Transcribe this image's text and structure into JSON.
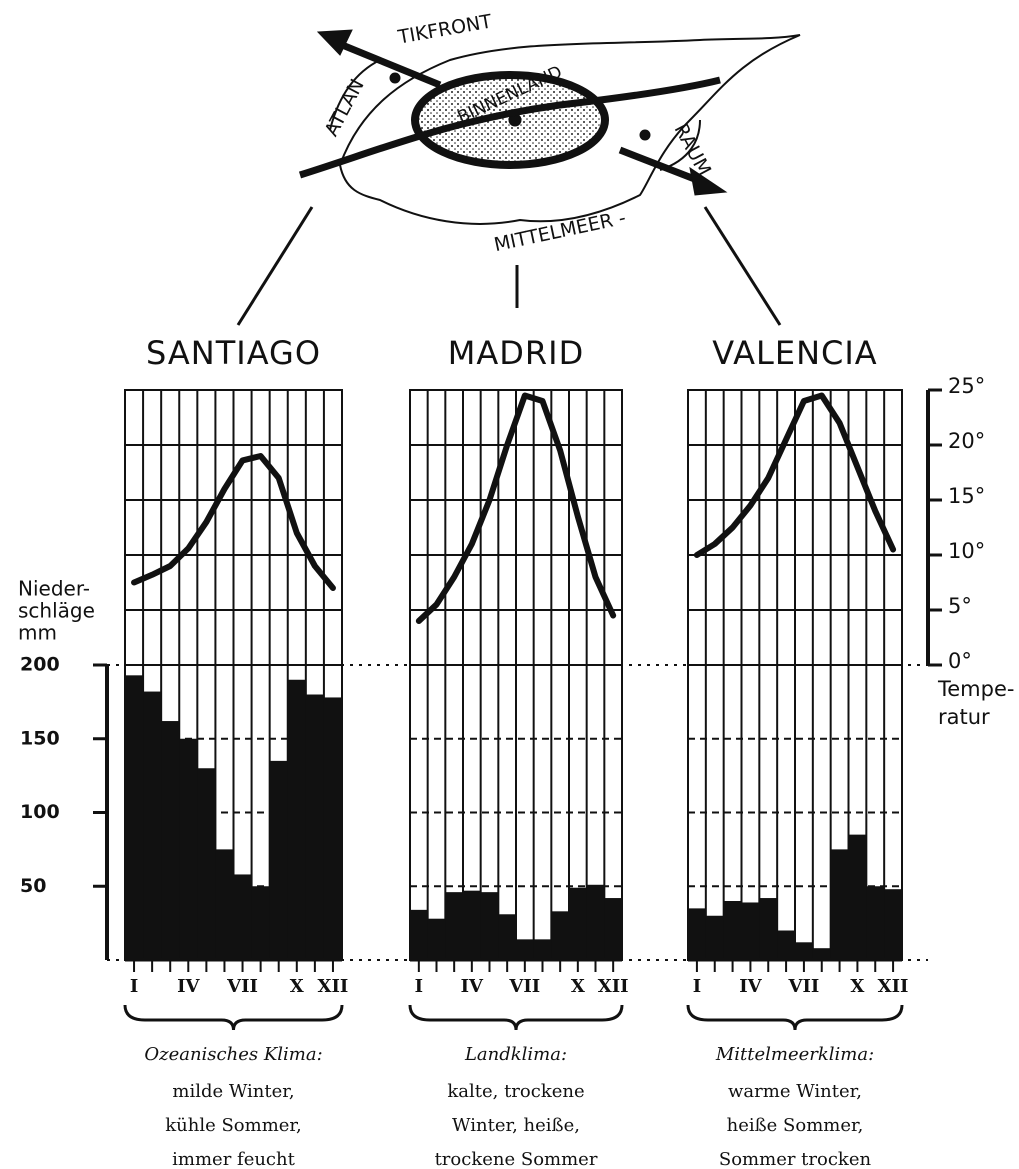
{
  "map": {
    "labels": [
      "ATLAN",
      "TIKFRONT",
      "BINNENLAND",
      "MITTELMEER -",
      "RAUM"
    ]
  },
  "chart_data": [
    {
      "type": "climate",
      "title": "SANTIAGO",
      "categories": [
        "I",
        null,
        null,
        "IV",
        null,
        null,
        "VII",
        null,
        null,
        "X",
        null,
        "XII"
      ],
      "series": [
        {
          "type": "bar",
          "color": "#111111",
          "values": [
            193,
            182,
            162,
            150,
            130,
            75,
            58,
            50,
            135,
            190,
            180,
            178
          ]
        },
        {
          "type": "line",
          "axis": "y2",
          "color": "#111111",
          "values": [
            7.5,
            8.2,
            9,
            10.6,
            13,
            16,
            18.6,
            19,
            17,
            12,
            9,
            7
          ]
        }
      ],
      "ylabel": [
        "Nieder-",
        "schläge",
        "mm"
      ],
      "ylim": [
        0,
        200
      ],
      "yticks": [
        50,
        100,
        150,
        200
      ],
      "caption": "Ozeanisches Klima:",
      "description": [
        "milde Winter,",
        "kühle Sommer,",
        "immer feucht"
      ]
    },
    {
      "type": "climate",
      "title": "MADRID",
      "categories": [
        "I",
        null,
        null,
        "IV",
        null,
        null,
        "VII",
        null,
        null,
        "X",
        null,
        "XII"
      ],
      "series": [
        {
          "type": "bar",
          "color": "#111111",
          "values": [
            34,
            28,
            46,
            47,
            46,
            31,
            14,
            14,
            33,
            49,
            51,
            42
          ]
        },
        {
          "type": "line",
          "axis": "y2",
          "color": "#111111",
          "values": [
            4,
            5.5,
            8,
            11,
            15,
            20,
            24.5,
            24,
            19.5,
            13.5,
            8,
            4.5
          ]
        }
      ],
      "caption": "Landklima:",
      "description": [
        "kalte, trockene",
        "Winter, heiße,",
        "trockene Sommer"
      ]
    },
    {
      "type": "climate",
      "title": "VALENCIA",
      "categories": [
        "I",
        null,
        null,
        "IV",
        null,
        null,
        "VII",
        null,
        null,
        "X",
        null,
        "XII"
      ],
      "series": [
        {
          "type": "bar",
          "color": "#111111",
          "values": [
            35,
            30,
            40,
            39,
            42,
            20,
            12,
            8,
            75,
            85,
            50,
            48
          ]
        },
        {
          "type": "line",
          "axis": "y2",
          "color": "#111111",
          "values": [
            10,
            11,
            12.5,
            14.5,
            17,
            20.5,
            24,
            24.5,
            22,
            18,
            14,
            10.5
          ]
        }
      ],
      "y2label": [
        "Tempe-",
        "ratur"
      ],
      "y2lim": [
        0,
        25
      ],
      "y2ticks": [
        {
          "value": 0,
          "label": "0°"
        },
        {
          "value": 5,
          "label": "5°"
        },
        {
          "value": 10,
          "label": "10°"
        },
        {
          "value": 15,
          "label": "15°"
        },
        {
          "value": 20,
          "label": "20°"
        },
        {
          "value": 25,
          "label": "25°"
        }
      ],
      "caption": "Mittelmeerklima:",
      "description": [
        "warme Winter,",
        "heiße Sommer,",
        "Sommer trocken"
      ]
    }
  ]
}
